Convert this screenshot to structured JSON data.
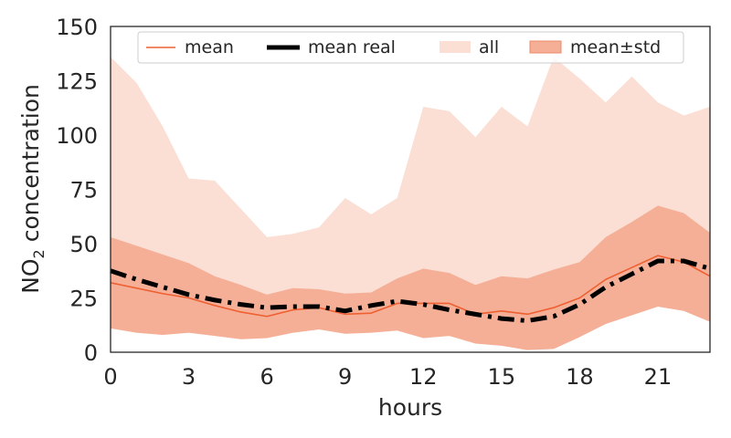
{
  "chart_data": {
    "type": "area",
    "xlabel": "hours",
    "ylabel_main": "NO",
    "ylabel_sub": "2",
    "ylabel_rest": " concentration",
    "xlim": [
      0,
      23
    ],
    "ylim": [
      0,
      150
    ],
    "xticks": [
      0,
      3,
      6,
      9,
      12,
      15,
      18,
      21
    ],
    "yticks": [
      0,
      25,
      50,
      75,
      100,
      125,
      150
    ],
    "grid": false,
    "legend_position": "top",
    "legend": {
      "mean": "mean",
      "mean_real": "mean real",
      "all": "all",
      "mean_std": "mean±std"
    },
    "x": [
      0,
      1,
      2,
      3,
      4,
      5,
      6,
      7,
      8,
      9,
      10,
      11,
      12,
      13,
      14,
      15,
      16,
      17,
      18,
      19,
      20,
      21,
      22,
      23
    ],
    "series": [
      {
        "name": "all",
        "kind": "band",
        "lower": [
          11,
          9,
          8,
          9,
          7.5,
          6,
          6.5,
          9,
          10.5,
          8.5,
          9,
          10,
          6.5,
          7.5,
          4,
          3,
          1,
          1.5,
          7,
          13,
          17,
          21,
          19,
          14
        ],
        "upper": [
          136,
          124,
          104,
          80,
          79,
          66,
          53,
          54.5,
          57.5,
          71,
          63.5,
          71,
          113,
          111,
          99,
          113,
          104,
          136,
          126,
          115,
          127,
          115,
          109,
          113
        ],
        "color": "#fbded4"
      },
      {
        "name": "mean±std",
        "kind": "band",
        "lower": [
          11,
          9,
          8,
          9,
          7.5,
          6,
          6.5,
          9,
          10.5,
          8.5,
          9,
          10,
          6.5,
          7.5,
          4,
          3,
          1,
          1.5,
          7,
          13,
          17,
          21,
          19,
          14
        ],
        "upper": [
          53,
          49,
          45,
          41,
          35,
          31,
          26.5,
          29.5,
          29,
          27,
          27.5,
          34,
          38.5,
          36.5,
          31,
          35,
          34,
          38,
          41.5,
          53,
          60,
          67.5,
          64,
          55
        ],
        "color": "#f5af96"
      },
      {
        "name": "mean",
        "kind": "line",
        "values": [
          32,
          29.5,
          27,
          25,
          21.5,
          18.5,
          16.5,
          19.5,
          20.5,
          17.5,
          18,
          22.5,
          22.5,
          22.5,
          17.5,
          19,
          17.5,
          20.5,
          25,
          33.5,
          39,
          44.5,
          41.5,
          35
        ],
        "color": "#ee6032"
      },
      {
        "name": "mean real",
        "kind": "line",
        "values": [
          37.5,
          33.5,
          30,
          26.5,
          24,
          22,
          20.5,
          21,
          21,
          19,
          21.5,
          23.5,
          22,
          19.5,
          17.5,
          15.5,
          14.5,
          16.5,
          22,
          30,
          36,
          42,
          42,
          38.5
        ],
        "color": "#000000"
      }
    ]
  }
}
